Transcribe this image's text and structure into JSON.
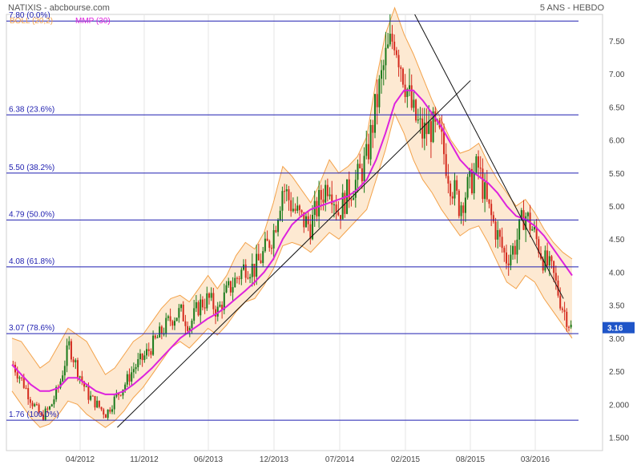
{
  "header": {
    "left": "NATIXIS - abcbourse.com",
    "right": "5 ANS - HEBDO"
  },
  "colors": {
    "band_fill": "#fde9d2",
    "band_line": "#f3a24a",
    "ma_line": "#dd22dd",
    "up_candle": "#1a7a1a",
    "down_candle": "#d42b1e",
    "fib_line": "#1f1fb0",
    "trendline": "#111111",
    "axis_text": "#444444",
    "grid": "#e6e6e6",
    "price_badge": "#1f55c8"
  },
  "chart_data": {
    "type": "candlestick",
    "title": "",
    "xlabel": "",
    "ylabel": "",
    "ylim": [
      1.3,
      7.9
    ],
    "x_ticks": [
      "04/2012",
      "11/2012",
      "06/2013",
      "12/2013",
      "07/2014",
      "02/2015",
      "08/2015",
      "03/2016"
    ],
    "y_ticks": [
      "1.500",
      "2.000",
      "2.50",
      "3.00",
      "3.50",
      "4.00",
      "4.50",
      "5.00",
      "5.50",
      "6.00",
      "6.50",
      "7.00",
      "7.50"
    ],
    "y_tick_values": [
      1.5,
      2.0,
      2.5,
      3.0,
      3.5,
      4.0,
      4.5,
      5.0,
      5.5,
      6.0,
      6.5,
      7.0,
      7.5
    ],
    "legend": [
      {
        "name": "BOLL (20,2)",
        "color": "#f3a24a"
      },
      {
        "name": "MMP (30)",
        "color": "#dd22dd"
      }
    ],
    "fibonacci": [
      {
        "label": "7.80  (0.0%)",
        "value": 7.8
      },
      {
        "label": "6.38  (23.6%)",
        "value": 6.38
      },
      {
        "label": "5.50  (38.2%)",
        "value": 5.5
      },
      {
        "label": "4.79  (50.0%)",
        "value": 4.79
      },
      {
        "label": "4.08  (61.8%)",
        "value": 4.08
      },
      {
        "label": "3.07  (78.6%)",
        "value": 3.07
      },
      {
        "label": "1.76  (100.0%)",
        "value": 1.76
      }
    ],
    "last_price": "3.16",
    "close_path": [
      2.6,
      2.35,
      2.05,
      1.8,
      1.95,
      2.3,
      2.9,
      2.5,
      2.15,
      2.0,
      1.85,
      2.1,
      2.3,
      2.55,
      2.7,
      2.9,
      3.1,
      3.3,
      3.4,
      3.2,
      3.5,
      3.6,
      3.4,
      3.7,
      3.9,
      4.1,
      4.05,
      4.3,
      4.6,
      5.3,
      5.0,
      4.8,
      4.7,
      5.1,
      5.4,
      4.9,
      5.2,
      5.4,
      5.7,
      6.5,
      7.2,
      7.6,
      7.0,
      6.4,
      6.1,
      6.2,
      6.0,
      5.4,
      5.0,
      5.3,
      5.6,
      5.0,
      4.6,
      4.2,
      4.4,
      4.9,
      4.6,
      4.2,
      4.0,
      3.5,
      3.16
    ],
    "ma_path": [
      2.6,
      2.45,
      2.3,
      2.2,
      2.2,
      2.25,
      2.4,
      2.4,
      2.3,
      2.2,
      2.15,
      2.15,
      2.2,
      2.3,
      2.42,
      2.55,
      2.7,
      2.85,
      3.0,
      3.1,
      3.2,
      3.3,
      3.38,
      3.48,
      3.6,
      3.72,
      3.85,
      4.0,
      4.2,
      4.5,
      4.72,
      4.85,
      4.95,
      5.0,
      5.05,
      5.1,
      5.15,
      5.25,
      5.4,
      5.7,
      6.1,
      6.55,
      6.75,
      6.75,
      6.6,
      6.4,
      6.2,
      5.95,
      5.7,
      5.55,
      5.45,
      5.35,
      5.2,
      5.0,
      4.85,
      4.8,
      4.7,
      4.55,
      4.35,
      4.15,
      3.95
    ],
    "boll_upper": [
      3.0,
      2.95,
      2.75,
      2.55,
      2.65,
      2.9,
      3.15,
      3.05,
      2.95,
      2.7,
      2.45,
      2.55,
      2.75,
      2.95,
      3.05,
      3.25,
      3.45,
      3.6,
      3.65,
      3.55,
      3.75,
      3.95,
      3.75,
      3.95,
      4.25,
      4.45,
      4.35,
      4.6,
      5.05,
      5.6,
      5.45,
      5.25,
      5.05,
      5.35,
      5.7,
      5.5,
      5.6,
      5.75,
      6.05,
      6.9,
      7.6,
      8.0,
      7.6,
      7.3,
      6.95,
      6.6,
      6.3,
      6.0,
      5.8,
      5.85,
      5.95,
      5.65,
      5.4,
      5.2,
      5.0,
      5.1,
      4.9,
      4.65,
      4.45,
      4.3,
      4.2
    ],
    "boll_lower": [
      2.2,
      2.0,
      1.8,
      1.65,
      1.7,
      1.85,
      2.05,
      2.0,
      1.85,
      1.75,
      1.65,
      1.75,
      1.9,
      2.1,
      2.25,
      2.45,
      2.65,
      2.85,
      2.95,
      2.85,
      3.0,
      3.15,
      3.05,
      3.2,
      3.4,
      3.55,
      3.6,
      3.8,
      4.05,
      4.4,
      4.45,
      4.4,
      4.3,
      4.45,
      4.6,
      4.5,
      4.65,
      4.8,
      4.95,
      5.4,
      5.85,
      6.4,
      6.1,
      5.7,
      5.4,
      5.2,
      4.95,
      4.75,
      4.55,
      4.65,
      4.7,
      4.45,
      4.15,
      3.85,
      3.75,
      3.95,
      3.85,
      3.6,
      3.4,
      3.2,
      3.0
    ],
    "trendlines": [
      {
        "from": {
          "x": "2012-08",
          "y": 1.65
        },
        "to": {
          "x": "2015-10",
          "y": 6.9
        }
      },
      {
        "from": {
          "x": "2015-04",
          "y": 7.9
        },
        "to": {
          "x": "2016-08",
          "y": 3.6
        }
      }
    ]
  }
}
